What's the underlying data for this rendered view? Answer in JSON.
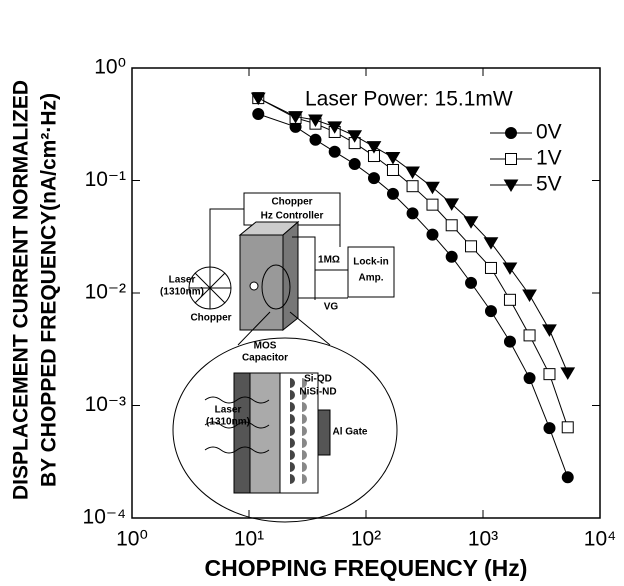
{
  "chart_data": {
    "type": "line",
    "xlabel": "CHOPPING FREQUENCY (Hz)",
    "ylabel": [
      "DISPLACEMENT CURRENT NORMALIZED",
      "BY CHOPPED FREQUENCY(nA/cm²·Hz)"
    ],
    "annotation": "Laser Power: 15.1mW",
    "xscale": "log",
    "yscale": "log",
    "xlim": [
      1,
      10000
    ],
    "ylim": [
      0.0001,
      1
    ],
    "xticks": [
      {
        "value": 1,
        "label": "10⁰"
      },
      {
        "value": 10,
        "label": "10¹"
      },
      {
        "value": 100,
        "label": "10²"
      },
      {
        "value": 1000,
        "label": "10³"
      },
      {
        "value": 10000,
        "label": "10⁴"
      }
    ],
    "yticks": [
      {
        "value": 0.0001,
        "label": "10⁻⁴"
      },
      {
        "value": 0.001,
        "label": "10⁻³"
      },
      {
        "value": 0.01,
        "label": "10⁻²"
      },
      {
        "value": 0.1,
        "label": "10⁻¹"
      },
      {
        "value": 1,
        "label": "10⁰"
      }
    ],
    "legend": "upper right",
    "x": [
      12,
      25,
      37,
      54,
      80,
      117,
      170,
      250,
      370,
      540,
      790,
      1170,
      1700,
      2500,
      3700,
      5300
    ],
    "series": [
      {
        "name": "0V",
        "color": "#000000",
        "marker": "circle",
        "marker_fill": "#000000",
        "values": [
          0.39,
          0.3,
          0.23,
          0.18,
          0.14,
          0.105,
          0.076,
          0.051,
          0.033,
          0.021,
          0.0123,
          0.0069,
          0.0037,
          0.00175,
          0.00063,
          0.00023
        ]
      },
      {
        "name": "1V",
        "color": "#000000",
        "marker": "square",
        "marker_fill": "#ffffff",
        "values": [
          0.54,
          0.36,
          0.32,
          0.27,
          0.215,
          0.165,
          0.124,
          0.089,
          0.061,
          0.04,
          0.026,
          0.0167,
          0.0087,
          0.0042,
          0.0019,
          0.00064
        ]
      },
      {
        "name": "5V",
        "color": "#000000",
        "marker": "triangle-down",
        "marker_fill": "#000000",
        "values": [
          0.54,
          0.37,
          0.345,
          0.3,
          0.25,
          0.2,
          0.16,
          0.119,
          0.087,
          0.062,
          0.043,
          0.028,
          0.0167,
          0.0096,
          0.0047,
          0.00195
        ]
      }
    ],
    "inset_labels": [
      "Chopper",
      "Hz Controller",
      "Laser",
      "(1310nm)",
      "Chopper",
      "1MΩ",
      "VG",
      "Lock-in",
      "Amp.",
      "MOS",
      "Capacitor",
      "Si-QD",
      "NiSi-ND",
      "Laser",
      "(1310nm)",
      "Al Gate"
    ]
  }
}
